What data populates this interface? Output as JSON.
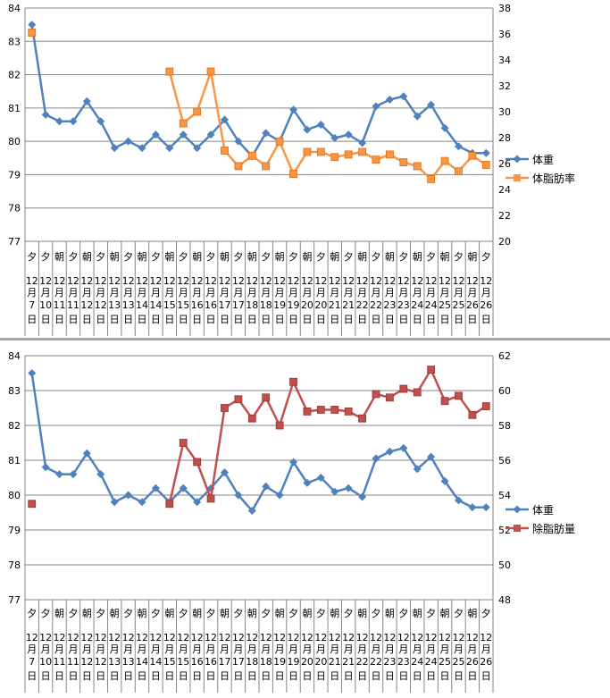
{
  "chart_data": [
    {
      "type": "line",
      "categories": [
        [
          "夕",
          "12",
          "月",
          "7",
          "日"
        ],
        [
          "夕",
          "12",
          "月",
          "10",
          "日"
        ],
        [
          "朝",
          "12",
          "月",
          "11",
          "日"
        ],
        [
          "夕",
          "12",
          "月",
          "11",
          "日"
        ],
        [
          "朝",
          "12",
          "月",
          "12",
          "日"
        ],
        [
          "夕",
          "12",
          "月",
          "12",
          "日"
        ],
        [
          "朝",
          "12",
          "月",
          "13",
          "日"
        ],
        [
          "夕",
          "12",
          "月",
          "13",
          "日"
        ],
        [
          "朝",
          "12",
          "月",
          "14",
          "日"
        ],
        [
          "夕",
          "12",
          "月",
          "14",
          "日"
        ],
        [
          "朝",
          "12",
          "月",
          "15",
          "日"
        ],
        [
          "夕",
          "12",
          "月",
          "15",
          "日"
        ],
        [
          "朝",
          "12",
          "月",
          "16",
          "日"
        ],
        [
          "夕",
          "12",
          "月",
          "16",
          "日"
        ],
        [
          "朝",
          "12",
          "月",
          "17",
          "日"
        ],
        [
          "夕",
          "12",
          "月",
          "17",
          "日"
        ],
        [
          "朝",
          "12",
          "月",
          "18",
          "日"
        ],
        [
          "夕",
          "12",
          "月",
          "18",
          "日"
        ],
        [
          "朝",
          "12",
          "月",
          "19",
          "日"
        ],
        [
          "夕",
          "12",
          "月",
          "19",
          "日"
        ],
        [
          "朝",
          "12",
          "月",
          "20",
          "日"
        ],
        [
          "夕",
          "12",
          "月",
          "20",
          "日"
        ],
        [
          "朝",
          "12",
          "月",
          "21",
          "日"
        ],
        [
          "夕",
          "12",
          "月",
          "21",
          "日"
        ],
        [
          "朝",
          "12",
          "月",
          "22",
          "日"
        ],
        [
          "夕",
          "12",
          "月",
          "22",
          "日"
        ],
        [
          "朝",
          "12",
          "月",
          "23",
          "日"
        ],
        [
          "夕",
          "12",
          "月",
          "23",
          "日"
        ],
        [
          "朝",
          "12",
          "月",
          "24",
          "日"
        ],
        [
          "夕",
          "12",
          "月",
          "24",
          "日"
        ],
        [
          "朝",
          "12",
          "月",
          "25",
          "日"
        ],
        [
          "夕",
          "12",
          "月",
          "25",
          "日"
        ],
        [
          "朝",
          "12",
          "月",
          "26",
          "日"
        ],
        [
          "夕",
          "12",
          "月",
          "26",
          "日"
        ]
      ],
      "y_left": {
        "ylim": [
          77,
          84
        ],
        "ticks": [
          "77",
          "78",
          "79",
          "80",
          "81",
          "82",
          "83",
          "84"
        ]
      },
      "y_right": {
        "ylim": [
          20,
          38
        ],
        "ticks": [
          "20",
          "22",
          "24",
          "26",
          "28",
          "30",
          "32",
          "34",
          "36",
          "38"
        ]
      },
      "grid": true,
      "legend_position": "right",
      "series": [
        {
          "name": "体重",
          "axis": "left",
          "color": "#4f81bd",
          "marker": "diamond",
          "values": [
            83.5,
            80.8,
            80.6,
            80.6,
            81.2,
            80.6,
            79.8,
            80.0,
            79.8,
            80.2,
            79.8,
            80.2,
            79.8,
            80.2,
            80.65,
            80.0,
            79.55,
            80.25,
            80.0,
            80.95,
            80.35,
            80.5,
            80.1,
            80.2,
            79.95,
            81.05,
            81.25,
            81.35,
            80.75,
            81.1,
            80.4,
            79.85,
            79.65,
            79.65
          ]
        },
        {
          "name": "体脂肪率",
          "axis": "right",
          "color": "#f79646",
          "marker": "square",
          "values": [
            36.1,
            null,
            null,
            null,
            null,
            null,
            null,
            null,
            null,
            null,
            33.1,
            29.1,
            30.0,
            33.1,
            27.0,
            25.8,
            26.6,
            25.8,
            27.7,
            25.2,
            26.9,
            26.9,
            26.5,
            26.7,
            26.9,
            26.3,
            26.7,
            26.1,
            25.8,
            24.8,
            26.2,
            25.4,
            26.6,
            25.9
          ]
        }
      ]
    },
    {
      "type": "line",
      "categories": [
        [
          "夕",
          "12",
          "月",
          "7",
          "日"
        ],
        [
          "夕",
          "12",
          "月",
          "10",
          "日"
        ],
        [
          "朝",
          "12",
          "月",
          "11",
          "日"
        ],
        [
          "夕",
          "12",
          "月",
          "11",
          "日"
        ],
        [
          "朝",
          "12",
          "月",
          "12",
          "日"
        ],
        [
          "夕",
          "12",
          "月",
          "12",
          "日"
        ],
        [
          "朝",
          "12",
          "月",
          "13",
          "日"
        ],
        [
          "夕",
          "12",
          "月",
          "13",
          "日"
        ],
        [
          "朝",
          "12",
          "月",
          "14",
          "日"
        ],
        [
          "夕",
          "12",
          "月",
          "14",
          "日"
        ],
        [
          "朝",
          "12",
          "月",
          "15",
          "日"
        ],
        [
          "夕",
          "12",
          "月",
          "15",
          "日"
        ],
        [
          "朝",
          "12",
          "月",
          "16",
          "日"
        ],
        [
          "夕",
          "12",
          "月",
          "16",
          "日"
        ],
        [
          "朝",
          "12",
          "月",
          "17",
          "日"
        ],
        [
          "夕",
          "12",
          "月",
          "17",
          "日"
        ],
        [
          "朝",
          "12",
          "月",
          "18",
          "日"
        ],
        [
          "夕",
          "12",
          "月",
          "18",
          "日"
        ],
        [
          "朝",
          "12",
          "月",
          "19",
          "日"
        ],
        [
          "夕",
          "12",
          "月",
          "19",
          "日"
        ],
        [
          "朝",
          "12",
          "月",
          "20",
          "日"
        ],
        [
          "夕",
          "12",
          "月",
          "20",
          "日"
        ],
        [
          "朝",
          "12",
          "月",
          "21",
          "日"
        ],
        [
          "夕",
          "12",
          "月",
          "21",
          "日"
        ],
        [
          "朝",
          "12",
          "月",
          "22",
          "日"
        ],
        [
          "夕",
          "12",
          "月",
          "22",
          "日"
        ],
        [
          "朝",
          "12",
          "月",
          "23",
          "日"
        ],
        [
          "夕",
          "12",
          "月",
          "23",
          "日"
        ],
        [
          "朝",
          "12",
          "月",
          "24",
          "日"
        ],
        [
          "夕",
          "12",
          "月",
          "24",
          "日"
        ],
        [
          "朝",
          "12",
          "月",
          "25",
          "日"
        ],
        [
          "夕",
          "12",
          "月",
          "25",
          "日"
        ],
        [
          "朝",
          "12",
          "月",
          "26",
          "日"
        ],
        [
          "夕",
          "12",
          "月",
          "26",
          "日"
        ]
      ],
      "y_left": {
        "ylim": [
          77,
          84
        ],
        "ticks": [
          "77",
          "78",
          "79",
          "80",
          "81",
          "82",
          "83",
          "84"
        ]
      },
      "y_right": {
        "ylim": [
          48,
          62
        ],
        "ticks": [
          "48",
          "50",
          "52",
          "54",
          "56",
          "58",
          "60",
          "62"
        ]
      },
      "grid": true,
      "legend_position": "right",
      "series": [
        {
          "name": "体重",
          "axis": "left",
          "color": "#4f81bd",
          "marker": "diamond",
          "values": [
            83.5,
            80.8,
            80.6,
            80.6,
            81.2,
            80.6,
            79.8,
            80.0,
            79.8,
            80.2,
            79.8,
            80.2,
            79.8,
            80.2,
            80.65,
            80.0,
            79.55,
            80.25,
            80.0,
            80.95,
            80.35,
            80.5,
            80.1,
            80.2,
            79.95,
            81.05,
            81.25,
            81.35,
            80.75,
            81.1,
            80.4,
            79.85,
            79.65,
            79.65
          ]
        },
        {
          "name": "除脂肪量",
          "axis": "right",
          "color": "#c0504d",
          "marker": "square",
          "values": [
            53.5,
            null,
            null,
            null,
            null,
            null,
            null,
            null,
            null,
            null,
            53.5,
            57.0,
            55.9,
            53.8,
            59.0,
            59.5,
            58.4,
            59.6,
            58.0,
            60.5,
            58.8,
            58.9,
            58.9,
            58.8,
            58.4,
            59.8,
            59.6,
            60.1,
            59.9,
            61.2,
            59.4,
            59.7,
            58.6,
            59.1
          ]
        }
      ]
    }
  ]
}
